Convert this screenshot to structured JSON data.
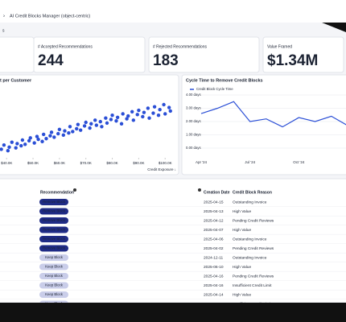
{
  "breadcrumb": "AI Credit Blocks Manager (object-centric)",
  "kpis": [
    {
      "label": "# Accepted Recommendations",
      "value": 244
    },
    {
      "label": "# Rejected Recommendations",
      "value": 183
    },
    {
      "label": "Value Framed",
      "value": 1340000,
      "value_label": "$1.34M"
    }
  ],
  "chart_data": [
    {
      "type": "scatter",
      "title": "t per Customer",
      "x_label": "Credit Exposure ↓",
      "color": "#2b4fd6",
      "xlim": [
        37500,
        104500
      ],
      "ylim": [
        0,
        100
      ],
      "xticks": [
        {
          "value": 40000,
          "label": "$40.0K"
        },
        {
          "value": 50000,
          "label": "$50.0K"
        },
        {
          "value": 60000,
          "label": "$60.0K"
        },
        {
          "value": 70000,
          "label": "$70.0K"
        },
        {
          "value": 80000,
          "label": "$80.0K"
        },
        {
          "value": 90000,
          "label": "$90.0K"
        },
        {
          "value": 100000,
          "label": "$100.0K"
        }
      ],
      "x": [
        38000,
        39000,
        40500,
        41000,
        42000,
        43500,
        44000,
        45500,
        46000,
        47000,
        48500,
        49000,
        50500,
        51500,
        52000,
        53500,
        54000,
        55000,
        56500,
        57000,
        58000,
        59500,
        60000,
        61500,
        62000,
        63500,
        64000,
        65000,
        66500,
        67000,
        68000,
        69500,
        70000,
        71500,
        72000,
        73500,
        74000,
        75500,
        76000,
        77500,
        78000,
        79500,
        80000,
        81500,
        82000,
        83500,
        84000,
        85500,
        86000,
        87500,
        88000,
        89500,
        90000,
        91500,
        92000,
        93500,
        94000,
        95500,
        96000,
        97500,
        98000,
        99500,
        100000,
        101500,
        102000
      ],
      "values": [
        12,
        18,
        10,
        15,
        22,
        14,
        20,
        17,
        25,
        19,
        24,
        28,
        21,
        30,
        26,
        23,
        33,
        27,
        31,
        36,
        29,
        34,
        40,
        32,
        38,
        35,
        44,
        37,
        41,
        47,
        39,
        45,
        50,
        42,
        48,
        53,
        46,
        51,
        44,
        56,
        49,
        54,
        60,
        52,
        57,
        48,
        62,
        55,
        59,
        65,
        53,
        61,
        67,
        58,
        64,
        70,
        56,
        63,
        72,
        60,
        68,
        75,
        62,
        71,
        66
      ]
    },
    {
      "type": "line",
      "title": "Cycle Time to Remove Credit Blocks",
      "categories": [
        "Apr '24",
        null,
        null,
        "Jul '24",
        null,
        null,
        "Oct '24",
        null,
        null,
        null
      ],
      "series": [
        {
          "name": "Credit Block Cycle Time",
          "color": "#2b4fd6",
          "values": [
            2.6,
            3.0,
            3.5,
            2.0,
            2.2,
            1.6,
            2.3,
            2.0,
            2.4,
            1.7
          ]
        }
      ],
      "ylim": [
        0,
        4
      ],
      "yticks": [
        {
          "value": 0,
          "label": "0.00 days"
        },
        {
          "value": 1,
          "label": "1.00 days"
        },
        {
          "value": 2,
          "label": "2.00 days"
        },
        {
          "value": 3,
          "label": "3.00 days"
        },
        {
          "value": 4,
          "label": "4.00 days"
        }
      ],
      "grid": true
    }
  ],
  "table": {
    "columns": [
      "Recommendation",
      "Creation Date",
      "Credit Block Reason"
    ],
    "rows": [
      [
        "Remove Block",
        "2025-04-15",
        "Outstanding Invoice"
      ],
      [
        "Remove Block",
        "2025-04-13",
        "High Value"
      ],
      [
        "Remove Block",
        "2025-04-12",
        "Pending Credit Reviews"
      ],
      [
        "Remove Block",
        "2025-04-07",
        "High Value"
      ],
      [
        "Remove Block",
        "2025-04-06",
        "Outstanding Invoice"
      ],
      [
        "Remove Block",
        "2025-04-02",
        "Pending Credit Reviews"
      ],
      [
        "Keep Block",
        "2024-12-11",
        "Outstanding Invoice"
      ],
      [
        "Keep Block",
        "2025-06-10",
        "High Value"
      ],
      [
        "Keep Block",
        "2025-04-16",
        "Pending Credit Reviews"
      ],
      [
        "Keep Block",
        "2025-04-16",
        "Insufficient Credit Limit"
      ],
      [
        "Keep Block",
        "2025-04-14",
        "High Value"
      ],
      [
        "Keep Block",
        "2025-04-14",
        "Insufficient Credit Limit"
      ]
    ]
  }
}
